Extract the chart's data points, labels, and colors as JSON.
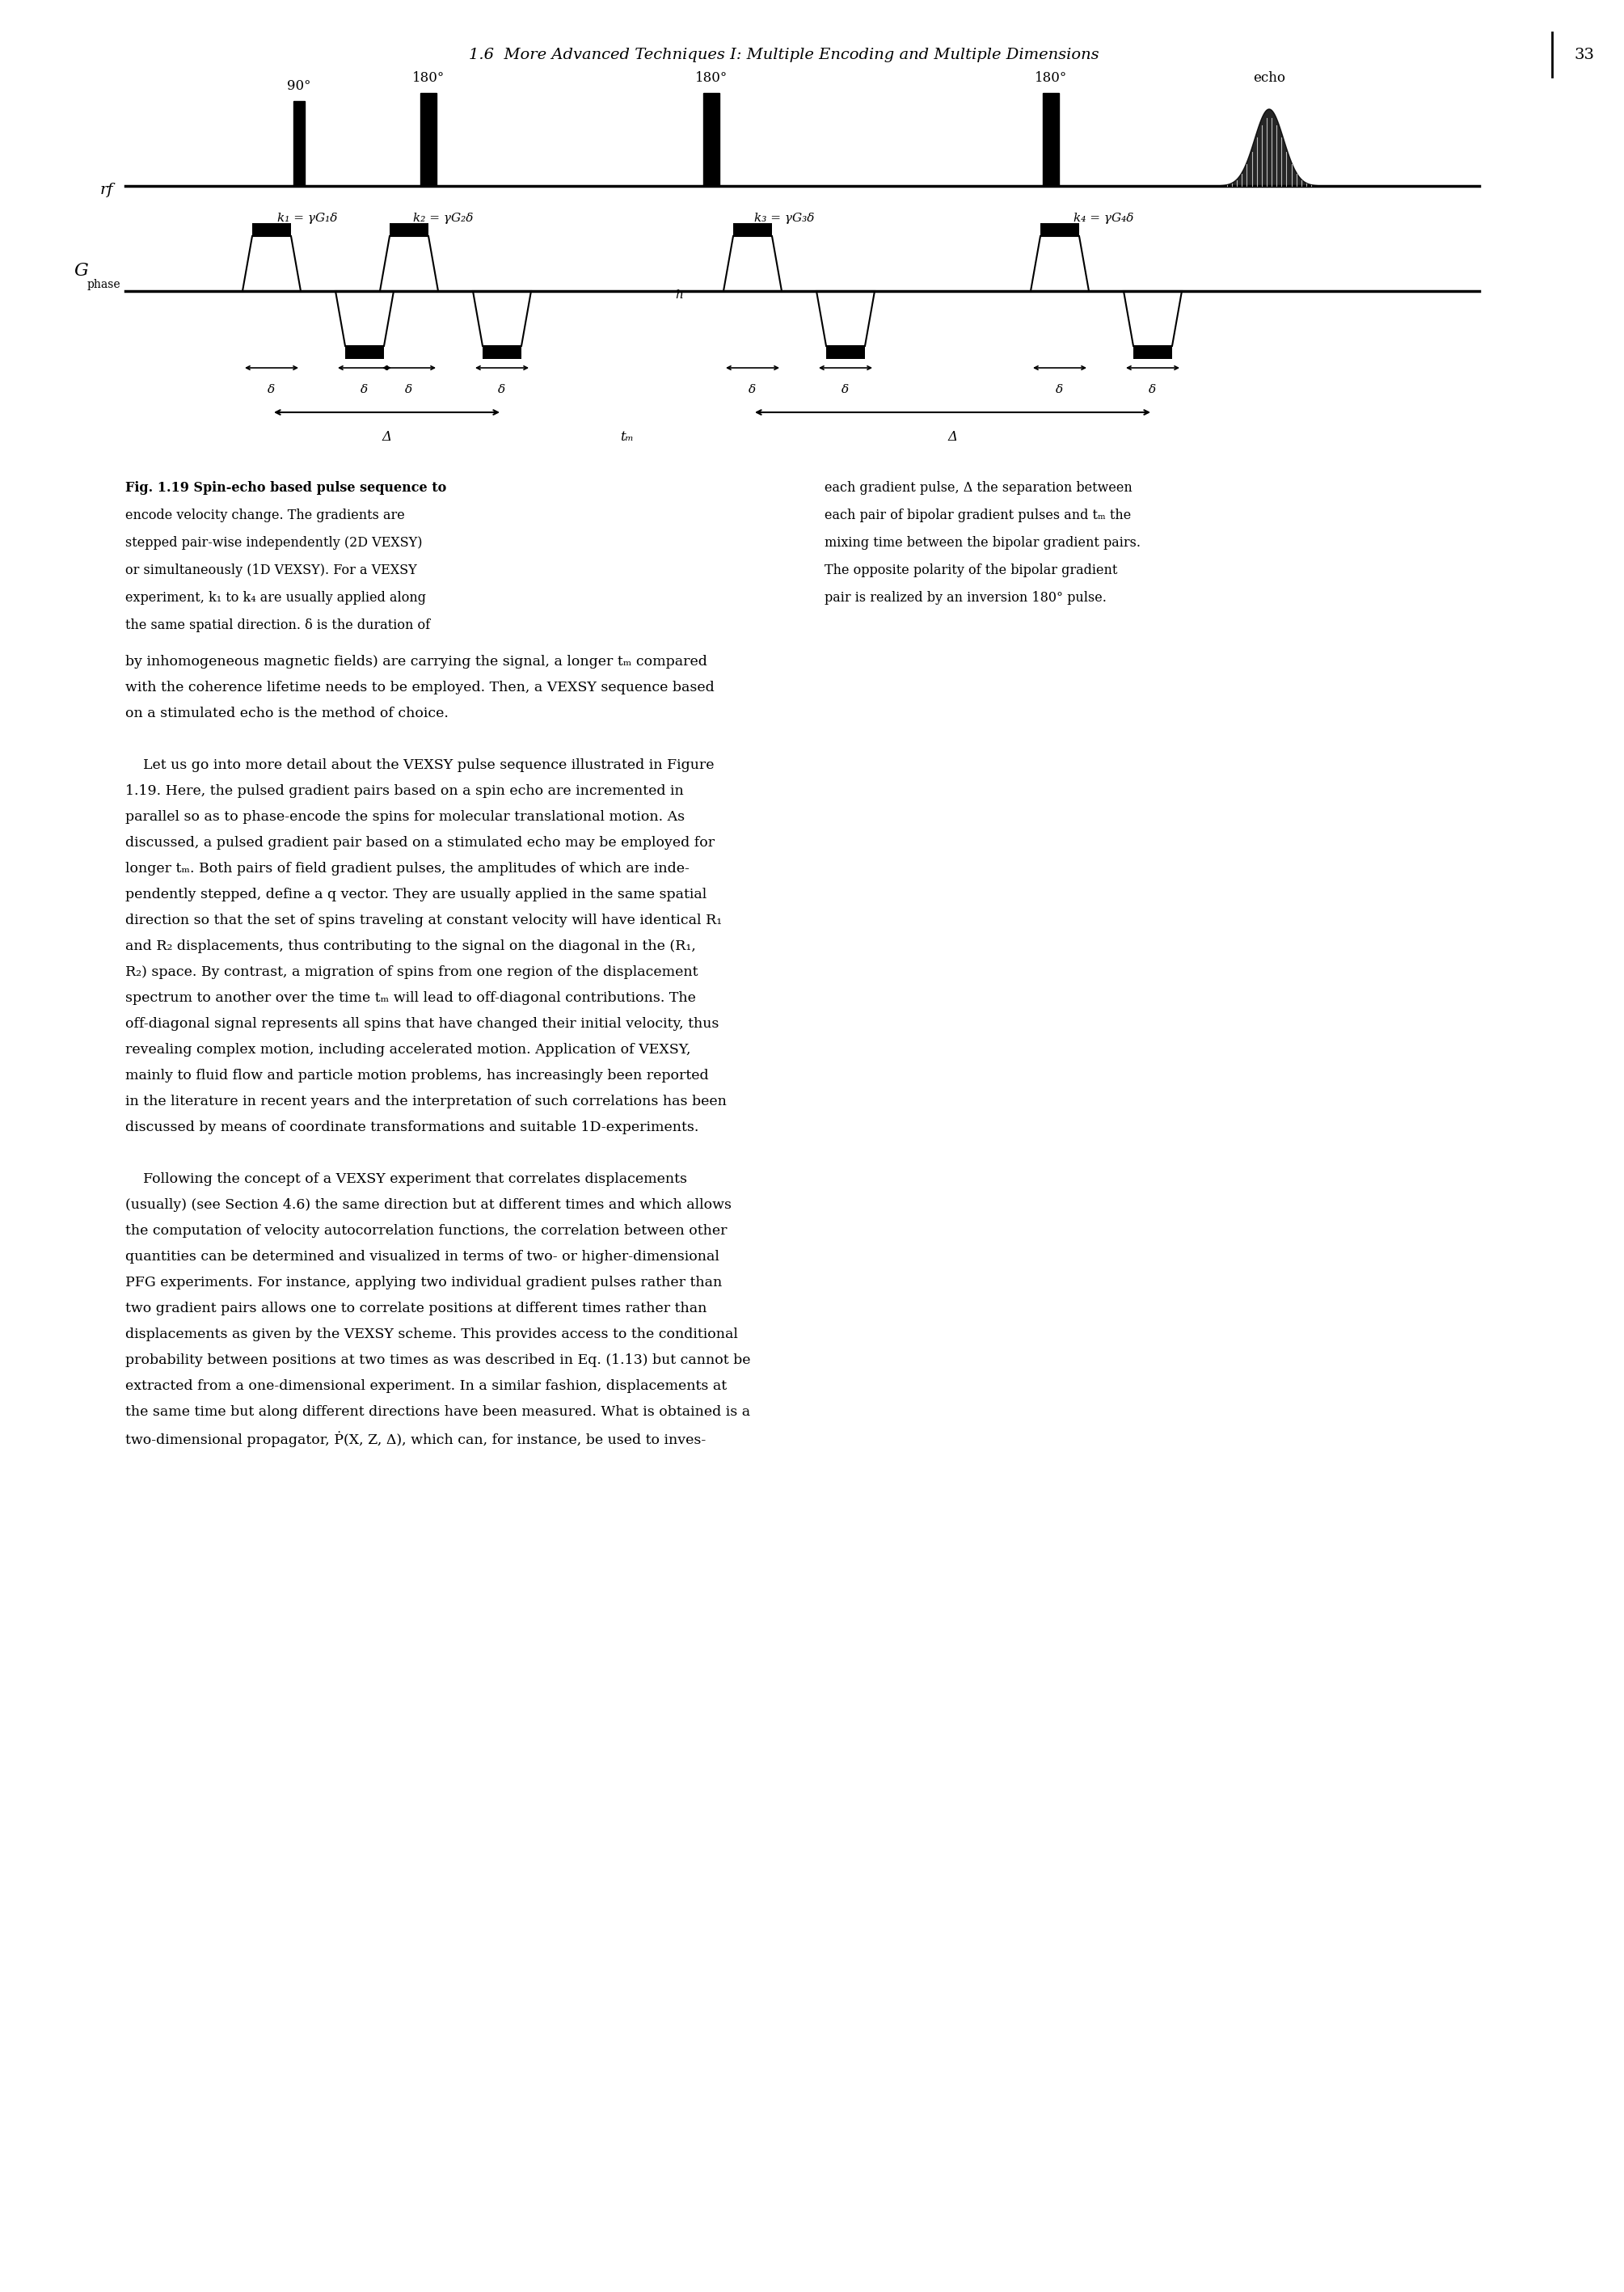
{
  "page_header": "1.6  More Advanced Techniques I: Multiple Encoding and Multiple Dimensions",
  "page_number": "33",
  "rf_label": "rf",
  "g_label": "G",
  "phase_label": "phase",
  "pulse_labels_top": [
    "90°",
    "180°",
    "180°",
    "180°",
    "echo"
  ],
  "k_labels": [
    "k₁ = γG₁δ",
    "k₂ = γG₂δ",
    "k₃ = γG₃δ",
    "k₄ = γG₄δ"
  ],
  "delta_big": "Δ",
  "delta_small": "δ",
  "tm_label": "tₘ",
  "cap_left": [
    "Fig. 1.19 Spin-echo based pulse sequence to",
    "encode velocity change. The gradients are",
    "stepped pair-wise independently (2D VEXSY)",
    "or simultaneously (1D VEXSY). For a VEXSY",
    "experiment, k₁ to k₄ are usually applied along",
    "the same spatial direction. δ is the duration of"
  ],
  "cap_right": [
    "each gradient pulse, Δ the separation between",
    "each pair of bipolar gradient pulses and tₘ the",
    "mixing time between the bipolar gradient pairs.",
    "The opposite polarity of the bipolar gradient",
    "pair is realized by an inversion 180° pulse."
  ],
  "body_lines": [
    "by inhomogeneous magnetic fields) are carrying the signal, a longer tₘ compared",
    "with the coherence lifetime needs to be employed. Then, a VEXSY sequence based",
    "on a stimulated echo is the method of choice.",
    "",
    "    Let us go into more detail about the VEXSY pulse sequence illustrated in Figure",
    "1.19. Here, the pulsed gradient pairs based on a spin echo are incremented in",
    "parallel so as to phase-encode the spins for molecular translational motion. As",
    "discussed, a pulsed gradient pair based on a stimulated echo may be employed for",
    "longer tₘ. Both pairs of field gradient pulses, the amplitudes of which are inde-",
    "pendently stepped, define a q vector. They are usually applied in the same spatial",
    "direction so that the set of spins traveling at constant velocity will have identical R₁",
    "and R₂ displacements, thus contributing to the signal on the diagonal in the (R₁,",
    "R₂) space. By contrast, a migration of spins from one region of the displacement",
    "spectrum to another over the time tₘ will lead to off-diagonal contributions. The",
    "off-diagonal signal represents all spins that have changed their initial velocity, thus",
    "revealing complex motion, including accelerated motion. Application of VEXSY,",
    "mainly to fluid flow and particle motion problems, has increasingly been reported",
    "in the literature in recent years and the interpretation of such correlations has been",
    "discussed by means of coordinate transformations and suitable 1D-experiments.",
    "",
    "    Following the concept of a VEXSY experiment that correlates displacements",
    "(usually) (see Section 4.6) the same direction but at different times and which allows",
    "the computation of velocity autocorrelation functions, the correlation between other",
    "quantities can be determined and visualized in terms of two- or higher-dimensional",
    "PFG experiments. For instance, applying two individual gradient pulses rather than",
    "two gradient pairs allows one to correlate positions at different times rather than",
    "displacements as given by the VEXSY scheme. This provides access to the conditional",
    "probability between positions at two times as was described in Eq. (1.13) but cannot be",
    "extracted from a one-dimensional experiment. In a similar fashion, displacements at",
    "the same time but along different directions have been measured. What is obtained is a",
    "two-dimensional propagator, Ṗ(X, Z, Δ), which can, for instance, be used to inves-"
  ],
  "bg_color": "#ffffff"
}
